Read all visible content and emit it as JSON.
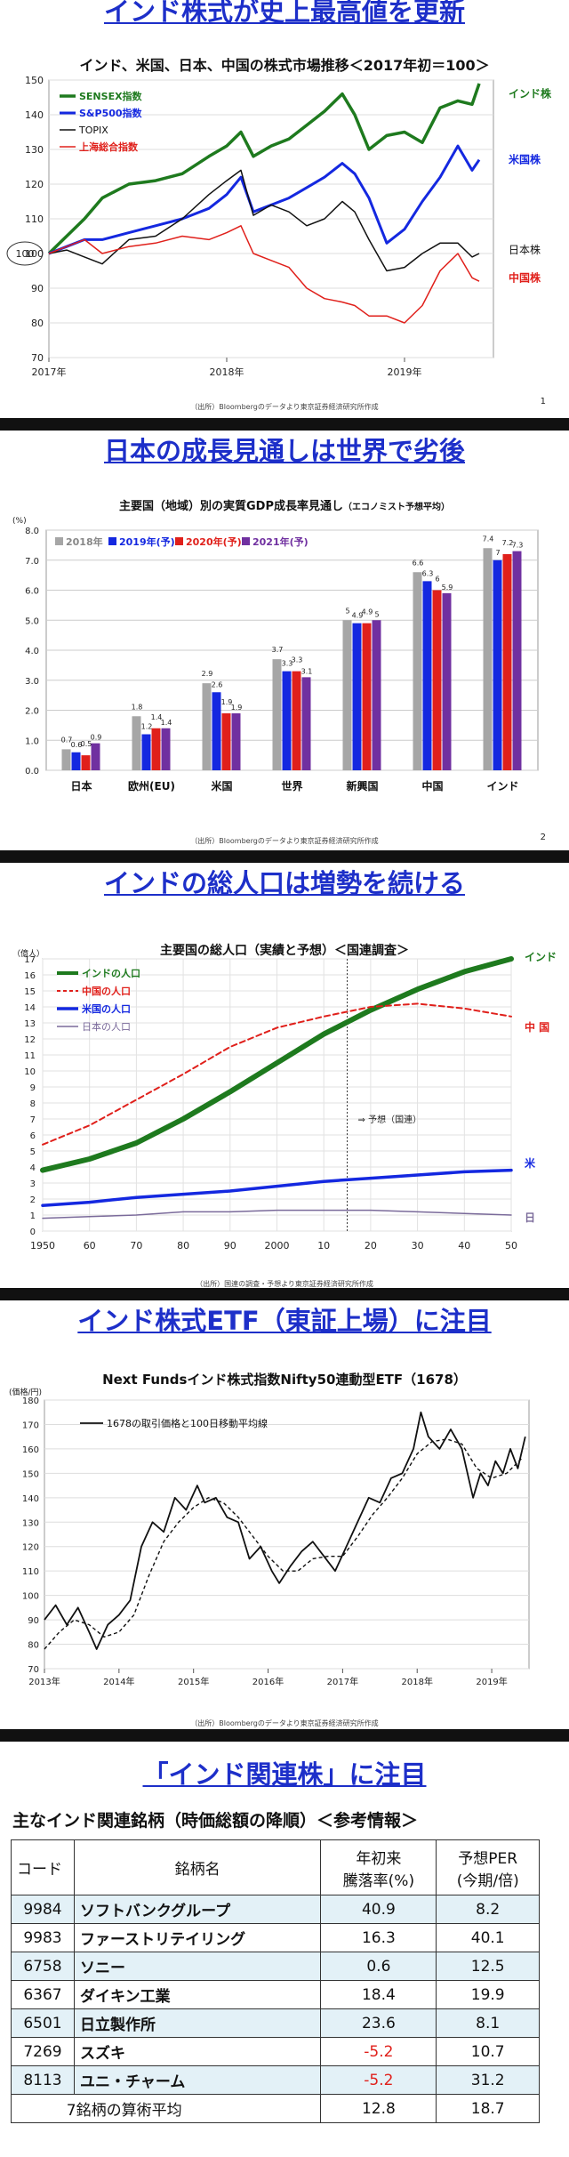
{
  "slide1": {
    "title": "インド株式が史上最高値を更新",
    "chart_title": "インド、米国、日本、中国の株式市場推移＜2017年初＝100＞",
    "source": "（出所）Bloombergのデータより東京証券経済研究所作成",
    "page": "1",
    "colors": {
      "india": "#1e7a1e",
      "us": "#1428e0",
      "japan": "#111111",
      "china": "#e0201b"
    },
    "chart_data": {
      "type": "line",
      "y_ticks": [
        70,
        80,
        90,
        100,
        110,
        120,
        130,
        140,
        150
      ],
      "x_labels": [
        "2017年",
        "2018年",
        "2019年"
      ],
      "ylim": [
        70,
        150
      ],
      "xlim": [
        2017.0,
        2019.5
      ],
      "legend": [
        "SENSEX指数",
        "S&P500指数",
        "TOPIX",
        "上海総合指数"
      ],
      "end_labels": [
        "インド株",
        "米国株",
        "日本株",
        "中国株"
      ],
      "baseline_label": "100",
      "series": [
        {
          "name": "SENSEX指数",
          "x": [
            2017.0,
            2017.1,
            2017.2,
            2017.3,
            2017.45,
            2017.6,
            2017.75,
            2017.9,
            2018.0,
            2018.08,
            2018.15,
            2018.25,
            2018.35,
            2018.45,
            2018.55,
            2018.65,
            2018.72,
            2018.8,
            2018.9,
            2019.0,
            2019.1,
            2019.2,
            2019.3,
            2019.38,
            2019.42
          ],
          "y": [
            100,
            105,
            110,
            116,
            120,
            121,
            123,
            128,
            131,
            135,
            128,
            131,
            133,
            137,
            141,
            146,
            140,
            130,
            134,
            135,
            132,
            142,
            144,
            143,
            149
          ]
        },
        {
          "name": "S&P500指数",
          "x": [
            2017.0,
            2017.1,
            2017.2,
            2017.3,
            2017.45,
            2017.6,
            2017.75,
            2017.9,
            2018.0,
            2018.08,
            2018.15,
            2018.25,
            2018.35,
            2018.45,
            2018.55,
            2018.65,
            2018.72,
            2018.8,
            2018.9,
            2019.0,
            2019.1,
            2019.2,
            2019.3,
            2019.38,
            2019.42
          ],
          "y": [
            100,
            102,
            104,
            104,
            106,
            108,
            110,
            113,
            117,
            122,
            112,
            114,
            116,
            119,
            122,
            126,
            123,
            116,
            103,
            107,
            115,
            122,
            131,
            124,
            127
          ]
        },
        {
          "name": "TOPIX",
          "x": [
            2017.0,
            2017.1,
            2017.2,
            2017.3,
            2017.45,
            2017.6,
            2017.75,
            2017.9,
            2018.0,
            2018.08,
            2018.15,
            2018.25,
            2018.35,
            2018.45,
            2018.55,
            2018.65,
            2018.72,
            2018.8,
            2018.9,
            2019.0,
            2019.1,
            2019.2,
            2019.3,
            2019.38,
            2019.42
          ],
          "y": [
            100,
            101,
            99,
            97,
            104,
            105,
            110,
            117,
            121,
            124,
            111,
            114,
            112,
            108,
            110,
            115,
            112,
            104,
            95,
            96,
            100,
            103,
            103,
            99,
            100
          ]
        },
        {
          "name": "上海総合指数",
          "x": [
            2017.0,
            2017.1,
            2017.2,
            2017.3,
            2017.45,
            2017.6,
            2017.75,
            2017.9,
            2018.0,
            2018.08,
            2018.15,
            2018.25,
            2018.35,
            2018.45,
            2018.55,
            2018.65,
            2018.72,
            2018.8,
            2018.9,
            2019.0,
            2019.1,
            2019.2,
            2019.3,
            2019.38,
            2019.42
          ],
          "y": [
            100,
            102,
            104,
            100,
            102,
            103,
            105,
            104,
            106,
            108,
            100,
            98,
            96,
            90,
            87,
            86,
            85,
            82,
            82,
            80,
            85,
            95,
            100,
            93,
            92
          ]
        }
      ]
    }
  },
  "slide2": {
    "title": "日本の成長見通しは世界で劣後",
    "chart_title": "主要国（地域）別の実質GDP成長率見通し",
    "chart_subtitle": "（エコノミスト予想平均）",
    "unit": "(%)",
    "source": "（出所）Bloombergのデータより東京証券経済研究所作成",
    "page": "2",
    "colors": [
      "#a6a6a6",
      "#1428e0",
      "#e0201b",
      "#7030a0"
    ],
    "chart_data": {
      "type": "bar",
      "categories": [
        "日本",
        "欧州(EU)",
        "米国",
        "世界",
        "新興国",
        "中国",
        "インド"
      ],
      "ylim": [
        0,
        8
      ],
      "y_ticks": [
        "0.0",
        "1.0",
        "2.0",
        "3.0",
        "4.0",
        "5.0",
        "6.0",
        "7.0",
        "8.0"
      ],
      "series": [
        {
          "name": "2018年",
          "values": [
            0.7,
            1.8,
            2.9,
            3.7,
            5.0,
            6.6,
            7.4
          ]
        },
        {
          "name": "2019年(予)",
          "values": [
            0.6,
            1.2,
            2.6,
            3.3,
            4.9,
            6.3,
            7.0
          ]
        },
        {
          "name": "2020年(予)",
          "values": [
            0.5,
            1.4,
            1.9,
            3.3,
            4.9,
            6.0,
            7.2
          ]
        },
        {
          "name": "2021年(予)",
          "values": [
            0.9,
            1.4,
            1.9,
            3.1,
            5.0,
            5.9,
            7.3
          ]
        }
      ]
    }
  },
  "slide3": {
    "title": "インドの総人口は増勢を続ける",
    "chart_title": "主要国の総人口（実績と予想）＜国連調査＞",
    "unit": "（億人）",
    "forecast_label": "⇒ 予想（国連）",
    "source": "（出所）国連の調査・予想より東京証券経済研究所作成",
    "colors": {
      "india": "#1e7a1e",
      "china": "#e0201b",
      "us": "#1428e0",
      "japan": "#7a6a9a"
    },
    "chart_data": {
      "type": "line",
      "ylim": [
        0,
        17
      ],
      "y_ticks": [
        0,
        1,
        2,
        3,
        4,
        5,
        6,
        7,
        8,
        9,
        10,
        11,
        12,
        13,
        14,
        15,
        16,
        17
      ],
      "x_labels": [
        "1950",
        "60",
        "70",
        "80",
        "90",
        "2000",
        "10",
        "20",
        "30",
        "40",
        "50"
      ],
      "legend": [
        "インドの人口",
        "中国の人口",
        "米国の人口",
        "日本の人口"
      ],
      "end_labels": [
        "インド",
        "中 国",
        "米",
        "日"
      ],
      "series": [
        {
          "name": "インドの人口",
          "x": [
            1950,
            1960,
            1970,
            1980,
            1990,
            2000,
            2010,
            2020,
            2030,
            2040,
            2050
          ],
          "y": [
            3.8,
            4.5,
            5.5,
            7.0,
            8.7,
            10.5,
            12.3,
            13.8,
            15.1,
            16.2,
            17.0
          ]
        },
        {
          "name": "中国の人口",
          "x": [
            1950,
            1960,
            1970,
            1980,
            1990,
            2000,
            2010,
            2020,
            2030,
            2040,
            2050
          ],
          "y": [
            5.4,
            6.6,
            8.2,
            9.8,
            11.5,
            12.7,
            13.4,
            14.0,
            14.2,
            13.9,
            13.4
          ]
        },
        {
          "name": "米国の人口",
          "x": [
            1950,
            1960,
            1970,
            1980,
            1990,
            2000,
            2010,
            2020,
            2030,
            2040,
            2050
          ],
          "y": [
            1.6,
            1.8,
            2.1,
            2.3,
            2.5,
            2.8,
            3.1,
            3.3,
            3.5,
            3.7,
            3.8
          ]
        },
        {
          "name": "日本の人口",
          "x": [
            1950,
            1960,
            1970,
            1980,
            1990,
            2000,
            2010,
            2020,
            2030,
            2040,
            2050
          ],
          "y": [
            0.8,
            0.9,
            1.0,
            1.2,
            1.2,
            1.3,
            1.3,
            1.3,
            1.2,
            1.1,
            1.0
          ]
        }
      ],
      "forecast_x": 2015
    }
  },
  "slide4": {
    "title": "インド株式ETF（東証上場）に注目",
    "chart_title": "Next Fundsインド株式指数Nifty50連動型ETF（1678）",
    "unit": "(価格/円)",
    "legend": "1678の取引価格と100日移動平均線",
    "source": "（出所）Bloombergのデータより東京証券経済研究所作成",
    "chart_data": {
      "type": "line",
      "ylim": [
        70,
        180
      ],
      "y_ticks": [
        70,
        80,
        90,
        100,
        110,
        120,
        130,
        140,
        150,
        160,
        170,
        180
      ],
      "x_labels": [
        "2013年",
        "2014年",
        "2015年",
        "2016年",
        "2017年",
        "2018年",
        "2019年"
      ],
      "xlim": [
        2013.0,
        2019.5
      ],
      "series": [
        {
          "name": "1678の取引価格",
          "x": [
            2013.0,
            2013.15,
            2013.3,
            2013.45,
            2013.6,
            2013.7,
            2013.85,
            2014.0,
            2014.15,
            2014.3,
            2014.45,
            2014.6,
            2014.75,
            2014.9,
            2015.05,
            2015.15,
            2015.3,
            2015.45,
            2015.6,
            2015.75,
            2015.9,
            2016.05,
            2016.15,
            2016.3,
            2016.45,
            2016.6,
            2016.75,
            2016.9,
            2017.05,
            2017.2,
            2017.35,
            2017.5,
            2017.65,
            2017.8,
            2017.95,
            2018.05,
            2018.15,
            2018.3,
            2018.45,
            2018.6,
            2018.75,
            2018.85,
            2018.95,
            2019.05,
            2019.15,
            2019.25,
            2019.35,
            2019.45
          ],
          "y": [
            90,
            96,
            88,
            95,
            85,
            78,
            88,
            92,
            98,
            120,
            130,
            126,
            140,
            135,
            145,
            138,
            140,
            132,
            130,
            115,
            120,
            110,
            105,
            112,
            118,
            122,
            116,
            110,
            120,
            130,
            140,
            138,
            148,
            150,
            160,
            175,
            165,
            160,
            168,
            160,
            140,
            150,
            145,
            155,
            150,
            160,
            152,
            165
          ]
        },
        {
          "name": "100日移動平均線",
          "x": [
            2013.0,
            2013.2,
            2013.4,
            2013.6,
            2013.8,
            2014.0,
            2014.2,
            2014.4,
            2014.6,
            2014.8,
            2015.0,
            2015.2,
            2015.4,
            2015.6,
            2015.8,
            2016.0,
            2016.2,
            2016.4,
            2016.6,
            2016.8,
            2017.0,
            2017.2,
            2017.4,
            2017.6,
            2017.8,
            2018.0,
            2018.2,
            2018.4,
            2018.6,
            2018.8,
            2019.0,
            2019.2,
            2019.4
          ],
          "y": [
            78,
            85,
            90,
            88,
            83,
            85,
            92,
            108,
            122,
            130,
            136,
            140,
            138,
            132,
            124,
            116,
            110,
            110,
            115,
            116,
            116,
            124,
            133,
            140,
            148,
            158,
            163,
            164,
            162,
            152,
            148,
            150,
            156
          ]
        }
      ]
    }
  },
  "slide5": {
    "title": "「インド関連株」に注目",
    "subtitle": "主なインド関連銘柄（時価総額の降順）＜参考情報＞",
    "headers": {
      "code": "コード",
      "name": "銘柄名",
      "ytd_l1": "年初来",
      "ytd_l2": "騰落率(%)",
      "per_l1": "予想PER",
      "per_l2": "(今期/倍)"
    },
    "rows": [
      {
        "code": "9984",
        "name": "ソフトバンクグループ",
        "ytd": "40.9",
        "per": "8.2",
        "shade": true,
        "neg": false
      },
      {
        "code": "9983",
        "name": "ファーストリテイリング",
        "ytd": "16.3",
        "per": "40.1",
        "shade": false,
        "neg": false
      },
      {
        "code": "6758",
        "name": "ソニー",
        "ytd": "0.6",
        "per": "12.5",
        "shade": true,
        "neg": false
      },
      {
        "code": "6367",
        "name": "ダイキン工業",
        "ytd": "18.4",
        "per": "19.9",
        "shade": false,
        "neg": false
      },
      {
        "code": "6501",
        "name": "日立製作所",
        "ytd": "23.6",
        "per": "8.1",
        "shade": true,
        "neg": false
      },
      {
        "code": "7269",
        "name": "スズキ",
        "ytd": "-5.2",
        "per": "10.7",
        "shade": false,
        "neg": true
      },
      {
        "code": "8113",
        "name": "ユニ・チャーム",
        "ytd": "-5.2",
        "per": "31.2",
        "shade": true,
        "neg": true
      }
    ],
    "avg": {
      "label": "7銘柄の算術平均",
      "ytd": "12.8",
      "per": "18.7"
    }
  }
}
